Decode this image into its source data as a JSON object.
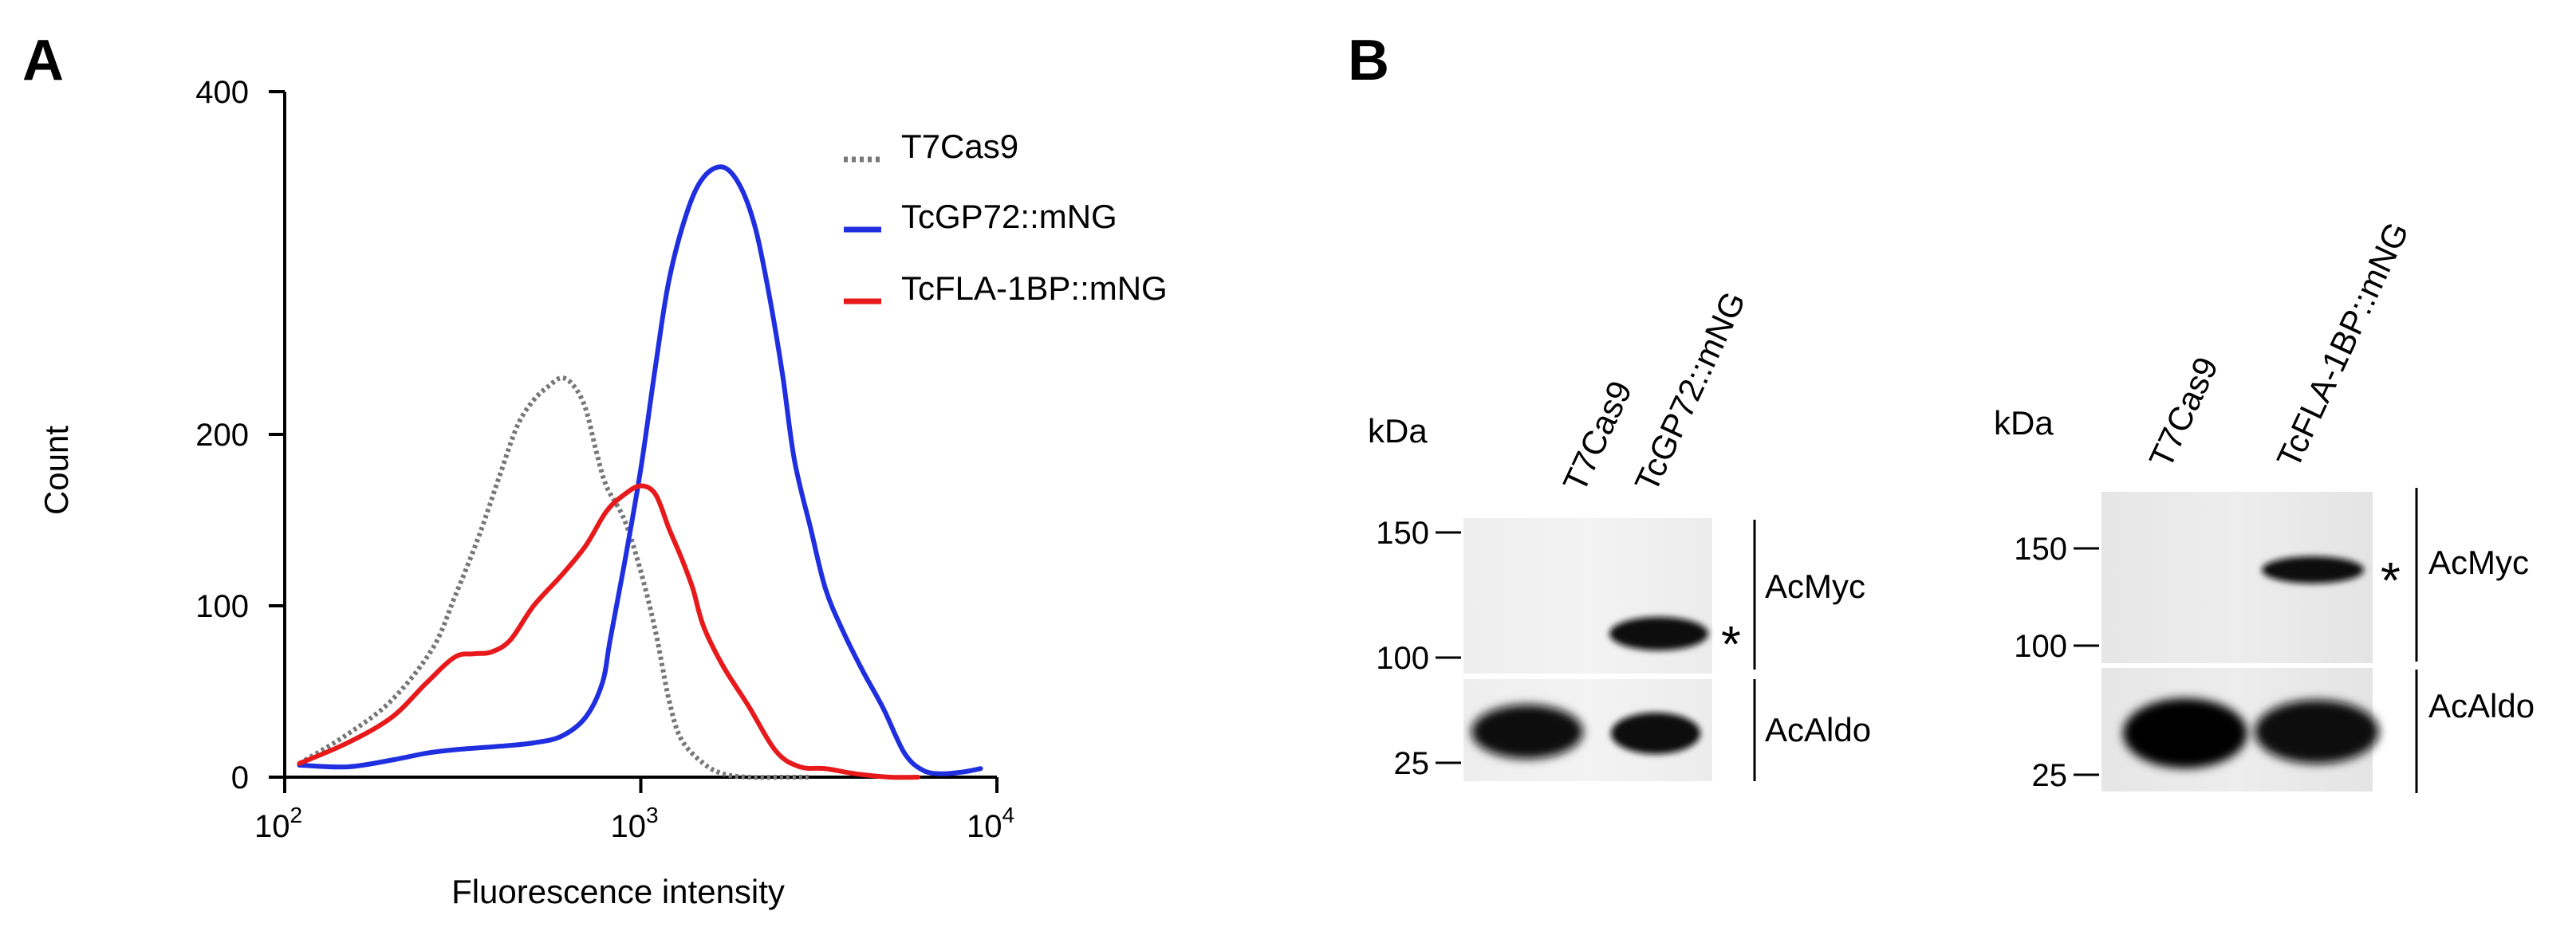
{
  "panels": {
    "a_label": "A",
    "b_label": "B"
  },
  "chart_data": {
    "type": "line",
    "title": "",
    "xlabel": "Fluorescence intensity",
    "ylabel": "Count",
    "x_scale": "log",
    "xlim": [
      100,
      10000
    ],
    "ylim": [
      0,
      400
    ],
    "x_ticks": [
      100,
      1000,
      10000
    ],
    "x_tick_labels": [
      {
        "base": "10",
        "exp": "2"
      },
      {
        "base": "10",
        "exp": "3"
      },
      {
        "base": "10",
        "exp": "4"
      }
    ],
    "y_ticks": [
      0,
      100,
      200,
      400
    ],
    "y_tick_labels": [
      "0",
      "100",
      "200",
      "400"
    ],
    "grid": false,
    "legend_position": "top-right",
    "series": [
      {
        "name": "T7Cas9",
        "color": "#777777",
        "style": "dotted",
        "points": [
          [
            110,
            8
          ],
          [
            150,
            25
          ],
          [
            200,
            45
          ],
          [
            260,
            75
          ],
          [
            300,
            105
          ],
          [
            350,
            140
          ],
          [
            400,
            175
          ],
          [
            450,
            205
          ],
          [
            500,
            220
          ],
          [
            550,
            228
          ],
          [
            600,
            233
          ],
          [
            650,
            228
          ],
          [
            700,
            215
          ],
          [
            750,
            190
          ],
          [
            800,
            170
          ],
          [
            900,
            150
          ],
          [
            1000,
            120
          ],
          [
            1100,
            85
          ],
          [
            1200,
            45
          ],
          [
            1300,
            22
          ],
          [
            1500,
            8
          ],
          [
            1700,
            2
          ],
          [
            2000,
            0
          ],
          [
            2500,
            0
          ],
          [
            3000,
            0
          ]
        ]
      },
      {
        "name": "TcGP72::mNG",
        "color": "#1f2fe0",
        "style": "solid",
        "points": [
          [
            110,
            7
          ],
          [
            150,
            6
          ],
          [
            200,
            10
          ],
          [
            250,
            14
          ],
          [
            300,
            16
          ],
          [
            400,
            18
          ],
          [
            500,
            20
          ],
          [
            600,
            24
          ],
          [
            700,
            35
          ],
          [
            780,
            55
          ],
          [
            820,
            80
          ],
          [
            900,
            125
          ],
          [
            1000,
            180
          ],
          [
            1100,
            240
          ],
          [
            1200,
            290
          ],
          [
            1350,
            330
          ],
          [
            1500,
            350
          ],
          [
            1700,
            356
          ],
          [
            1900,
            345
          ],
          [
            2100,
            320
          ],
          [
            2300,
            280
          ],
          [
            2500,
            235
          ],
          [
            2700,
            185
          ],
          [
            3000,
            145
          ],
          [
            3300,
            110
          ],
          [
            3700,
            85
          ],
          [
            4200,
            62
          ],
          [
            4800,
            40
          ],
          [
            5500,
            14
          ],
          [
            6200,
            4
          ],
          [
            7000,
            2
          ],
          [
            8000,
            3
          ],
          [
            9000,
            5
          ]
        ]
      },
      {
        "name": "TcFLA-1BP::mNG",
        "color": "#e8191b",
        "style": "solid",
        "points": [
          [
            110,
            8
          ],
          [
            150,
            20
          ],
          [
            200,
            35
          ],
          [
            250,
            55
          ],
          [
            300,
            70
          ],
          [
            340,
            72
          ],
          [
            380,
            73
          ],
          [
            430,
            80
          ],
          [
            500,
            100
          ],
          [
            600,
            118
          ],
          [
            700,
            135
          ],
          [
            800,
            155
          ],
          [
            900,
            165
          ],
          [
            1000,
            170
          ],
          [
            1100,
            165
          ],
          [
            1200,
            145
          ],
          [
            1300,
            128
          ],
          [
            1400,
            110
          ],
          [
            1500,
            88
          ],
          [
            1700,
            65
          ],
          [
            2000,
            42
          ],
          [
            2400,
            15
          ],
          [
            2800,
            6
          ],
          [
            3300,
            5
          ],
          [
            4000,
            2
          ],
          [
            5000,
            0
          ],
          [
            6000,
            0
          ]
        ]
      }
    ]
  },
  "blots": [
    {
      "kda_label": "kDa",
      "lanes": [
        "T7Cas9",
        "TcGP72::mNG"
      ],
      "markers": [
        "150",
        "100",
        "25"
      ],
      "antibodies": [
        "AcMyc",
        "AcAldo"
      ],
      "band_marker": "*"
    },
    {
      "kda_label": "kDa",
      "lanes": [
        "T7Cas9",
        "TcFLA-1BP::mNG"
      ],
      "markers": [
        "150",
        "100",
        "25"
      ],
      "antibodies": [
        "AcMyc",
        "AcAldo"
      ],
      "band_marker": "*"
    }
  ]
}
